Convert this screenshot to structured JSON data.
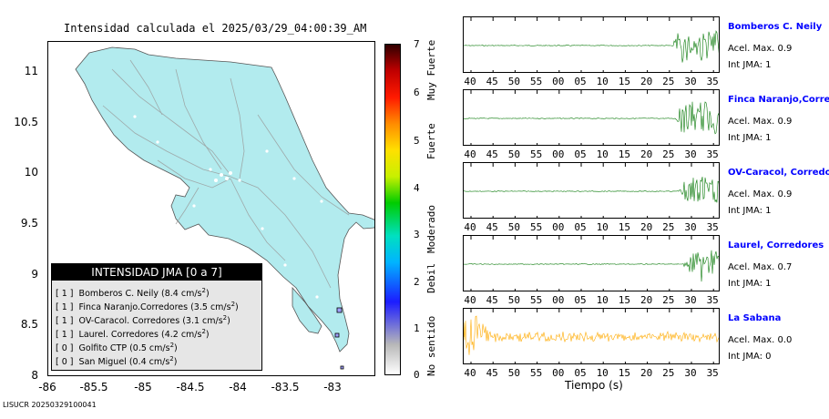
{
  "map": {
    "title": "Intensidad calculada el 2025/03/29_04:00:39_AM",
    "y_ticks": [
      "11",
      "10.5",
      "10",
      "9.5",
      "9",
      "8.5",
      "8"
    ],
    "x_ticks": [
      "-86",
      "-85.5",
      "-85",
      "-84.5",
      "-84",
      "-83.5",
      "-83"
    ],
    "land_color": "#b2ebee",
    "legend": {
      "title": "INTENSIDAD JMA [0 a 7]",
      "items": [
        {
          "prefix": "[ 1 ]",
          "text": "Bomberos C. Neily (8.4 cm/s",
          "unit_sup": "2",
          "close": ")"
        },
        {
          "prefix": "[ 1 ]",
          "text": "Finca Naranjo.Corredores (3.5 cm/s",
          "unit_sup": "2",
          "close": ")"
        },
        {
          "prefix": "[ 1 ]",
          "text": "OV-Caracol. Corredores (3.1 cm/s",
          "unit_sup": "2",
          "close": ")"
        },
        {
          "prefix": "[ 1 ]",
          "text": "Laurel. Corredores (4.2 cm/s",
          "unit_sup": "2",
          "close": ")"
        },
        {
          "prefix": "[ 0 ]",
          "text": "Golfito CTP (0.5 cm/s",
          "unit_sup": "2",
          "close": ")"
        },
        {
          "prefix": "[ 0 ]",
          "text": "San Miguel (0.4 cm/s",
          "unit_sup": "2",
          "close": ")"
        }
      ]
    },
    "footer_code": "LISUCR 20250329100041"
  },
  "colorbar": {
    "ticks": [
      "7",
      "6",
      "5",
      "4",
      "3",
      "2",
      "1",
      "0"
    ],
    "labels": [
      "Muy Fuerte",
      "Fuerte",
      "Moderado",
      "Debil",
      "No sentido"
    ]
  },
  "seismograms": {
    "x_ticks": [
      "40",
      "45",
      "50",
      "55",
      "00",
      "05",
      "10",
      "15",
      "20",
      "25",
      "30",
      "35"
    ],
    "x_axis_label": "Tiempo (s)",
    "stations": [
      {
        "name": "Bomberos C. Neily",
        "accel": "Acel. Max. 0.9",
        "int": "Int JMA: 1",
        "color": "#0a7a0a",
        "highlight": false
      },
      {
        "name": "Finca Naranjo,Corredores",
        "accel": "Acel. Max. 0.9",
        "int": "Int JMA: 1",
        "color": "#0a7a0a",
        "highlight": false
      },
      {
        "name": "OV-Caracol, Corredores",
        "accel": "Acel. Max. 0.9",
        "int": "Int JMA: 1",
        "color": "#0a7a0a",
        "highlight": false
      },
      {
        "name": "Laurel, Corredores",
        "accel": "Acel. Max. 0.7",
        "int": "Int JMA: 1",
        "color": "#0a7a0a",
        "highlight": false
      },
      {
        "name": "La Sabana",
        "accel": "Acel. Max. 0.0",
        "int": "Int JMA: 0",
        "color": "#ffaa00",
        "highlight": true
      }
    ]
  }
}
